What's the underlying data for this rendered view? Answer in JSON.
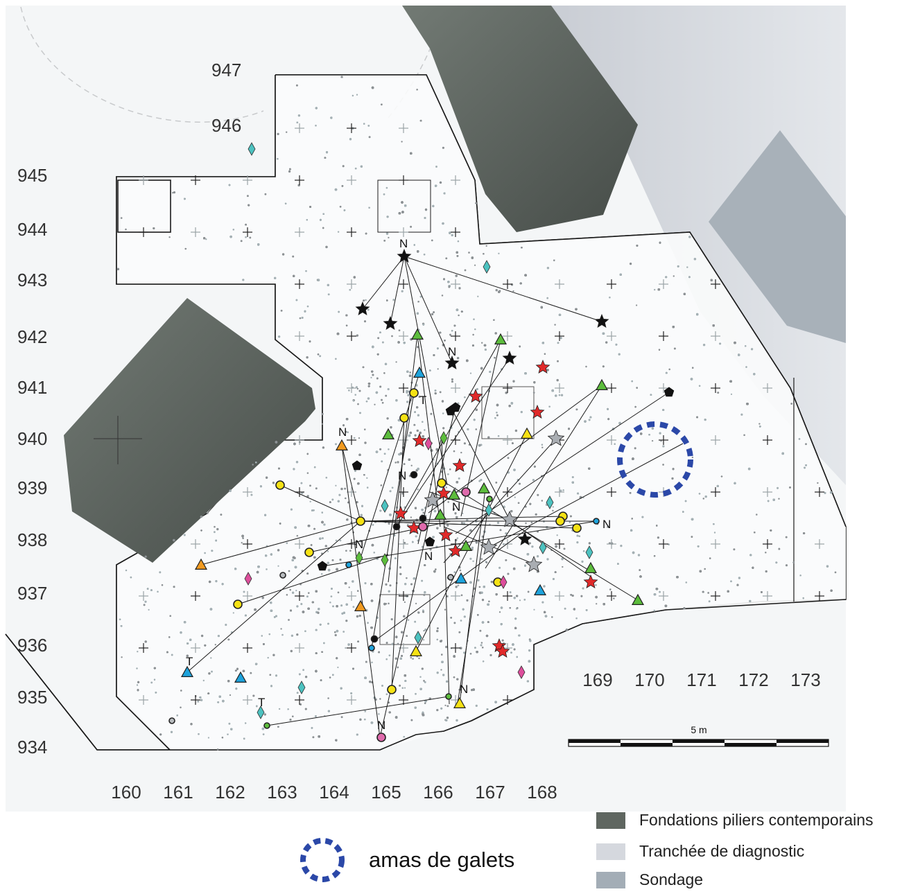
{
  "map": {
    "y_labels": [
      "947",
      "946",
      "945",
      "944",
      "943",
      "942",
      "941",
      "940",
      "939",
      "938",
      "937",
      "936",
      "935",
      "934"
    ],
    "x_labels": [
      "160",
      "161",
      "162",
      "163",
      "164",
      "165",
      "166",
      "167",
      "168"
    ],
    "x_labels_right": [
      "169",
      "170",
      "171",
      "172",
      "173"
    ],
    "point_labels": [
      "N",
      "N",
      "N",
      "N",
      "N",
      "N",
      "N",
      "N",
      "N",
      "N",
      "T",
      "T",
      "T"
    ],
    "scale_bar": {
      "label": "5 m",
      "segments": 5
    }
  },
  "legend": {
    "items": [
      {
        "label": "Fondations piliers contemporains",
        "color": "#5f6660"
      },
      {
        "label": "Tranchée de diagnostic",
        "color": "#d5d8de"
      },
      {
        "label": "Sondage",
        "color": "#a3adb6"
      }
    ],
    "amas_label": "amas de galets",
    "amas_color": "#2b48a8"
  },
  "colors": {
    "background": "#f4f6f7",
    "excavated": "#fbfcfc",
    "foundation": "#5b625d",
    "trench": "#d6dae0",
    "sondage": "#a8b1b9",
    "star_black": "#111111",
    "star_red": "#e02a2a",
    "star_grey": "#a9adb2",
    "triangle_green": "#5cbd3c",
    "triangle_blue": "#1ea3dc",
    "triangle_yellow": "#f6e214",
    "triangle_orange": "#f19a1f",
    "circle_yellow": "#f6e214",
    "circle_pink": "#df6aac",
    "diamond_cyan": "#4cc2c0",
    "diamond_pink": "#dd4e9c",
    "diamond_green": "#5cbd3c"
  }
}
